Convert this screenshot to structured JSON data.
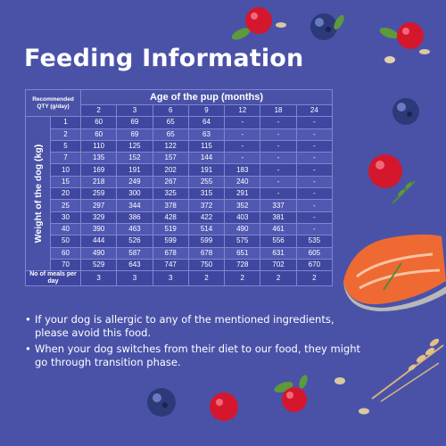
{
  "title": "Feeding Information",
  "table": {
    "corner_label": "Recommended QTY (g/day)",
    "age_header": "Age of the pup (months)",
    "weight_axis_label": "Weight of the dog (kg)",
    "ages": [
      "2",
      "3",
      "6",
      "9",
      "12",
      "18",
      "24"
    ],
    "rows": [
      {
        "weight": "1",
        "values": [
          "60",
          "69",
          "65",
          "64",
          "-",
          "-",
          "-"
        ]
      },
      {
        "weight": "2",
        "values": [
          "60",
          "69",
          "65",
          "63",
          "-",
          "-",
          "-"
        ]
      },
      {
        "weight": "5",
        "values": [
          "110",
          "125",
          "122",
          "115",
          "-",
          "-",
          "-"
        ]
      },
      {
        "weight": "7",
        "values": [
          "135",
          "152",
          "157",
          "144",
          "-",
          "-",
          "-"
        ]
      },
      {
        "weight": "10",
        "values": [
          "169",
          "191",
          "202",
          "191",
          "183",
          "-",
          "-"
        ]
      },
      {
        "weight": "15",
        "values": [
          "218",
          "249",
          "267",
          "255",
          "240",
          "-",
          "-"
        ]
      },
      {
        "weight": "20",
        "values": [
          "259",
          "300",
          "325",
          "315",
          "291",
          "-",
          "-"
        ]
      },
      {
        "weight": "25",
        "values": [
          "297",
          "344",
          "378",
          "372",
          "352",
          "337",
          "-"
        ]
      },
      {
        "weight": "30",
        "values": [
          "329",
          "386",
          "428",
          "422",
          "403",
          "381",
          "-"
        ]
      },
      {
        "weight": "40",
        "values": [
          "390",
          "463",
          "519",
          "514",
          "490",
          "461",
          "-"
        ]
      },
      {
        "weight": "50",
        "values": [
          "444",
          "526",
          "599",
          "599",
          "575",
          "556",
          "535"
        ]
      },
      {
        "weight": "60",
        "values": [
          "490",
          "587",
          "678",
          "678",
          "651",
          "631",
          "605"
        ]
      },
      {
        "weight": "70",
        "values": [
          "529",
          "643",
          "747",
          "750",
          "728",
          "702",
          "670"
        ]
      }
    ],
    "meals_label": "No of meals per day",
    "meals": [
      "3",
      "3",
      "3",
      "2",
      "2",
      "2",
      "2"
    ]
  },
  "notes": [
    "If your dog is allergic to any of the mentioned ingredients, please avoid this food.",
    "When your dog switches from their diet to our food, they might go through transition phase."
  ],
  "bullet": "•",
  "colors": {
    "background": "#4a52a8",
    "row_dark": "#3f47a0",
    "row_light": "#5058b2",
    "cranberry": "#d4172d",
    "blueberry": "#2c3a7a",
    "salmon": "#ee6a32"
  },
  "decorations": [
    "cranberry-icon",
    "blueberry-icon",
    "leaf-icon",
    "oat-flake-icon",
    "salmon-steak-icon",
    "wheat-stalk-icon",
    "rosemary-icon"
  ]
}
